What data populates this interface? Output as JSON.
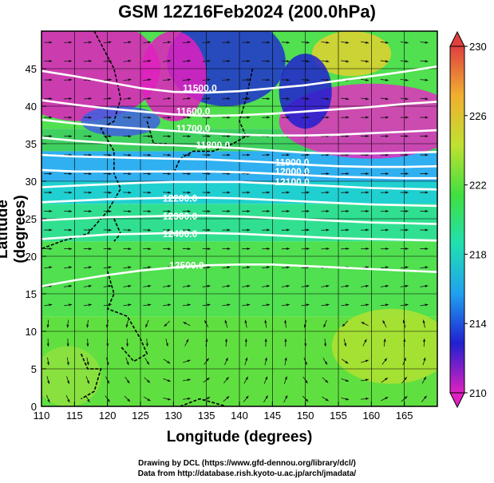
{
  "title": "GSM 12Z16Feb2024 (200.0hPa)",
  "xlabel": "Longitude (degrees)",
  "ylabel": "Latitude  (degrees)",
  "credits": [
    "Drawing by DCL (https://www.gfd-dennou.org/library/dcl/)",
    "Data from http://database.rish.kyoto-u.ac.jp/arch/jmadata/"
  ],
  "chart_data": {
    "type": "heatmap",
    "x_axis": {
      "label": "Longitude (degrees)",
      "range": [
        110,
        170
      ],
      "ticks": [
        110,
        115,
        120,
        125,
        130,
        135,
        140,
        145,
        150,
        155,
        160,
        165
      ]
    },
    "y_axis": {
      "label": "Latitude  (degrees)",
      "range": [
        0,
        50
      ],
      "ticks": [
        0,
        5,
        10,
        15,
        20,
        25,
        30,
        35,
        40,
        45
      ]
    },
    "colorbar": {
      "range": [
        210,
        230
      ],
      "ticks": [
        210,
        214,
        218,
        222,
        226,
        230
      ],
      "colors": [
        "#e020c0",
        "#2020d0",
        "#20a0f0",
        "#20e0b0",
        "#40e040",
        "#c0e030",
        "#f0b030",
        "#e04040"
      ]
    },
    "contours": [
      {
        "label": "11500.0",
        "label_lon": 134,
        "label_lat": 42.4,
        "lats": [
          44.7,
          44.0,
          43.2,
          42.4,
          41.9,
          41.8,
          42.0,
          42.4,
          42.8,
          43.4,
          44.0,
          44.6,
          45.3
        ]
      },
      {
        "label": "11600.0",
        "label_lon": 133,
        "label_lat": 39.3,
        "lats": [
          40.8,
          40.2,
          39.7,
          39.3,
          38.9,
          38.7,
          38.8,
          39.0,
          39.3,
          39.6,
          39.9,
          40.3,
          40.6
        ]
      },
      {
        "label": "11700.0",
        "label_lon": 133,
        "label_lat": 37.0,
        "lats": [
          38.2,
          37.7,
          37.3,
          37.0,
          36.7,
          36.4,
          36.2,
          36.1,
          36.1,
          36.2,
          36.4,
          36.6,
          36.8
        ]
      },
      {
        "label": "11800.0",
        "label_lon": 136,
        "label_lat": 34.8,
        "lats": [
          35.8,
          35.4,
          35.1,
          34.9,
          34.8,
          34.6,
          34.4,
          34.1,
          33.8,
          33.7,
          33.7,
          33.8,
          33.9
        ]
      },
      {
        "label": "11900.0",
        "label_lon": 148,
        "label_lat": 32.5,
        "lats": [
          33.5,
          33.3,
          33.2,
          33.1,
          33.0,
          32.9,
          32.7,
          32.5,
          32.2,
          32.0,
          31.9,
          31.9,
          32.0
        ]
      },
      {
        "label": "12000.0",
        "label_lon": 148,
        "label_lat": 31.3,
        "lats": [
          31.5,
          31.3,
          31.3,
          31.3,
          31.3,
          31.3,
          31.2,
          31.0,
          30.8,
          30.6,
          30.5,
          30.4,
          30.4
        ]
      },
      {
        "label": "12100.0",
        "label_lon": 148,
        "label_lat": 29.9,
        "lats": [
          29.2,
          29.4,
          29.6,
          29.8,
          29.9,
          29.9,
          29.9,
          29.7,
          29.5,
          29.3,
          29.1,
          29.0,
          28.9
        ]
      },
      {
        "label": "12200.0",
        "label_lon": 131,
        "label_lat": 27.7,
        "lats": [
          27.2,
          27.4,
          27.6,
          27.7,
          27.8,
          27.8,
          27.7,
          27.5,
          27.3,
          27.1,
          26.9,
          26.8,
          26.7
        ]
      },
      {
        "label": "12300.0",
        "label_lon": 131,
        "label_lat": 25.3,
        "lats": [
          24.8,
          25.0,
          25.2,
          25.3,
          25.4,
          25.4,
          25.3,
          25.1,
          24.9,
          24.7,
          24.5,
          24.4,
          24.3
        ]
      },
      {
        "label": "12400.0",
        "label_lon": 131,
        "label_lat": 23.0,
        "lats": [
          22.3,
          22.6,
          22.9,
          23.0,
          23.1,
          23.1,
          23.0,
          22.8,
          22.6,
          22.4,
          22.3,
          22.2,
          22.1
        ]
      },
      {
        "label": "12500.0",
        "label_lon": 132,
        "label_lat": 18.8,
        "lats": [
          16.0,
          16.8,
          17.5,
          18.1,
          18.5,
          18.8,
          18.9,
          18.9,
          18.7,
          18.5,
          18.3,
          18.1,
          17.9
        ]
      }
    ]
  }
}
